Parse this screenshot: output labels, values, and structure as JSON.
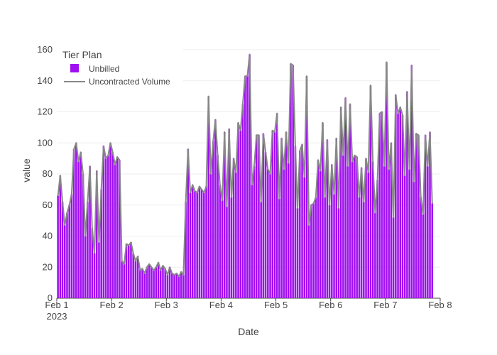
{
  "chart_data": {
    "type": "bar",
    "title": "",
    "xlabel": "Date",
    "ylabel": "value",
    "ylim": [
      0,
      160
    ],
    "yticks": [
      0,
      20,
      40,
      60,
      80,
      100,
      120,
      140,
      160
    ],
    "xlim": [
      "2023-02-01",
      "2023-02-08"
    ],
    "xtick_labels": [
      "Feb 1",
      "Feb 2",
      "Feb 3",
      "Feb 4",
      "Feb 5",
      "Feb 6",
      "Feb 7",
      "Feb 8"
    ],
    "xtick_year": "2023",
    "x_frequency": "hourly",
    "x_start": "2023-02-01 00:00",
    "grid": true,
    "legend": {
      "title": "Tier Plan",
      "placement": "top-left"
    },
    "colors": {
      "bar": "#a00ff0",
      "line": "#888888",
      "grid": "#eeeeee",
      "text": "#444444"
    },
    "series": [
      {
        "name": "Unbilled",
        "type": "bar",
        "values": [
          66,
          79,
          62,
          47,
          55,
          60,
          67,
          96,
          100,
          88,
          94,
          80,
          40,
          62,
          85,
          45,
          29,
          82,
          36,
          70,
          98,
          90,
          92,
          100,
          94,
          86,
          91,
          89,
          24,
          22,
          35,
          34,
          36,
          29,
          24,
          27,
          18,
          19,
          16,
          20,
          22,
          20,
          18,
          20,
          23,
          18,
          21,
          19,
          15,
          20,
          16,
          15,
          16,
          14,
          17,
          15,
          62,
          96,
          68,
          73,
          69,
          68,
          72,
          70,
          68,
          72,
          130,
          80,
          101,
          115,
          92,
          73,
          63,
          107,
          59,
          109,
          65,
          90,
          81,
          113,
          108,
          125,
          143,
          143,
          157,
          73,
          85,
          105,
          105,
          62,
          106,
          94,
          83,
          80,
          108,
          107,
          119,
          64,
          103,
          83,
          107,
          87,
          151,
          150,
          98,
          58,
          95,
          99,
          78,
          143,
          47,
          60,
          61,
          65,
          89,
          82,
          113,
          65,
          102,
          60,
          86,
          67,
          103,
          58,
          123,
          92,
          129,
          85,
          125,
          88,
          92,
          91,
          65,
          84,
          62,
          90,
          81,
          137,
          88,
          55,
          76,
          119,
          120,
          85,
          152,
          83,
          100,
          52,
          131,
          119,
          123,
          118,
          79,
          133,
          83,
          150,
          75,
          106,
          105,
          65,
          54,
          105,
          85,
          107,
          61
        ]
      },
      {
        "name": "Uncontracted Volume",
        "type": "line",
        "values": [
          66,
          79,
          62,
          47,
          55,
          60,
          67,
          96,
          100,
          88,
          94,
          80,
          40,
          62,
          85,
          45,
          29,
          82,
          36,
          70,
          98,
          90,
          92,
          100,
          94,
          86,
          91,
          89,
          24,
          22,
          35,
          34,
          36,
          29,
          24,
          27,
          18,
          19,
          16,
          20,
          22,
          20,
          18,
          20,
          23,
          18,
          21,
          19,
          15,
          20,
          16,
          15,
          16,
          14,
          17,
          15,
          62,
          96,
          68,
          73,
          69,
          68,
          72,
          70,
          68,
          72,
          130,
          80,
          101,
          115,
          92,
          73,
          63,
          107,
          59,
          109,
          65,
          90,
          81,
          113,
          108,
          125,
          143,
          143,
          157,
          73,
          85,
          105,
          105,
          62,
          106,
          94,
          83,
          80,
          108,
          107,
          119,
          64,
          103,
          83,
          107,
          87,
          151,
          150,
          98,
          58,
          95,
          99,
          78,
          143,
          47,
          60,
          61,
          65,
          89,
          82,
          113,
          65,
          102,
          60,
          86,
          67,
          103,
          58,
          123,
          92,
          129,
          85,
          125,
          88,
          92,
          91,
          65,
          84,
          62,
          90,
          81,
          137,
          88,
          55,
          76,
          119,
          120,
          85,
          152,
          83,
          100,
          52,
          131,
          119,
          123,
          118,
          79,
          133,
          83,
          150,
          75,
          106,
          105,
          65,
          54,
          105,
          85,
          107,
          61
        ]
      }
    ]
  }
}
